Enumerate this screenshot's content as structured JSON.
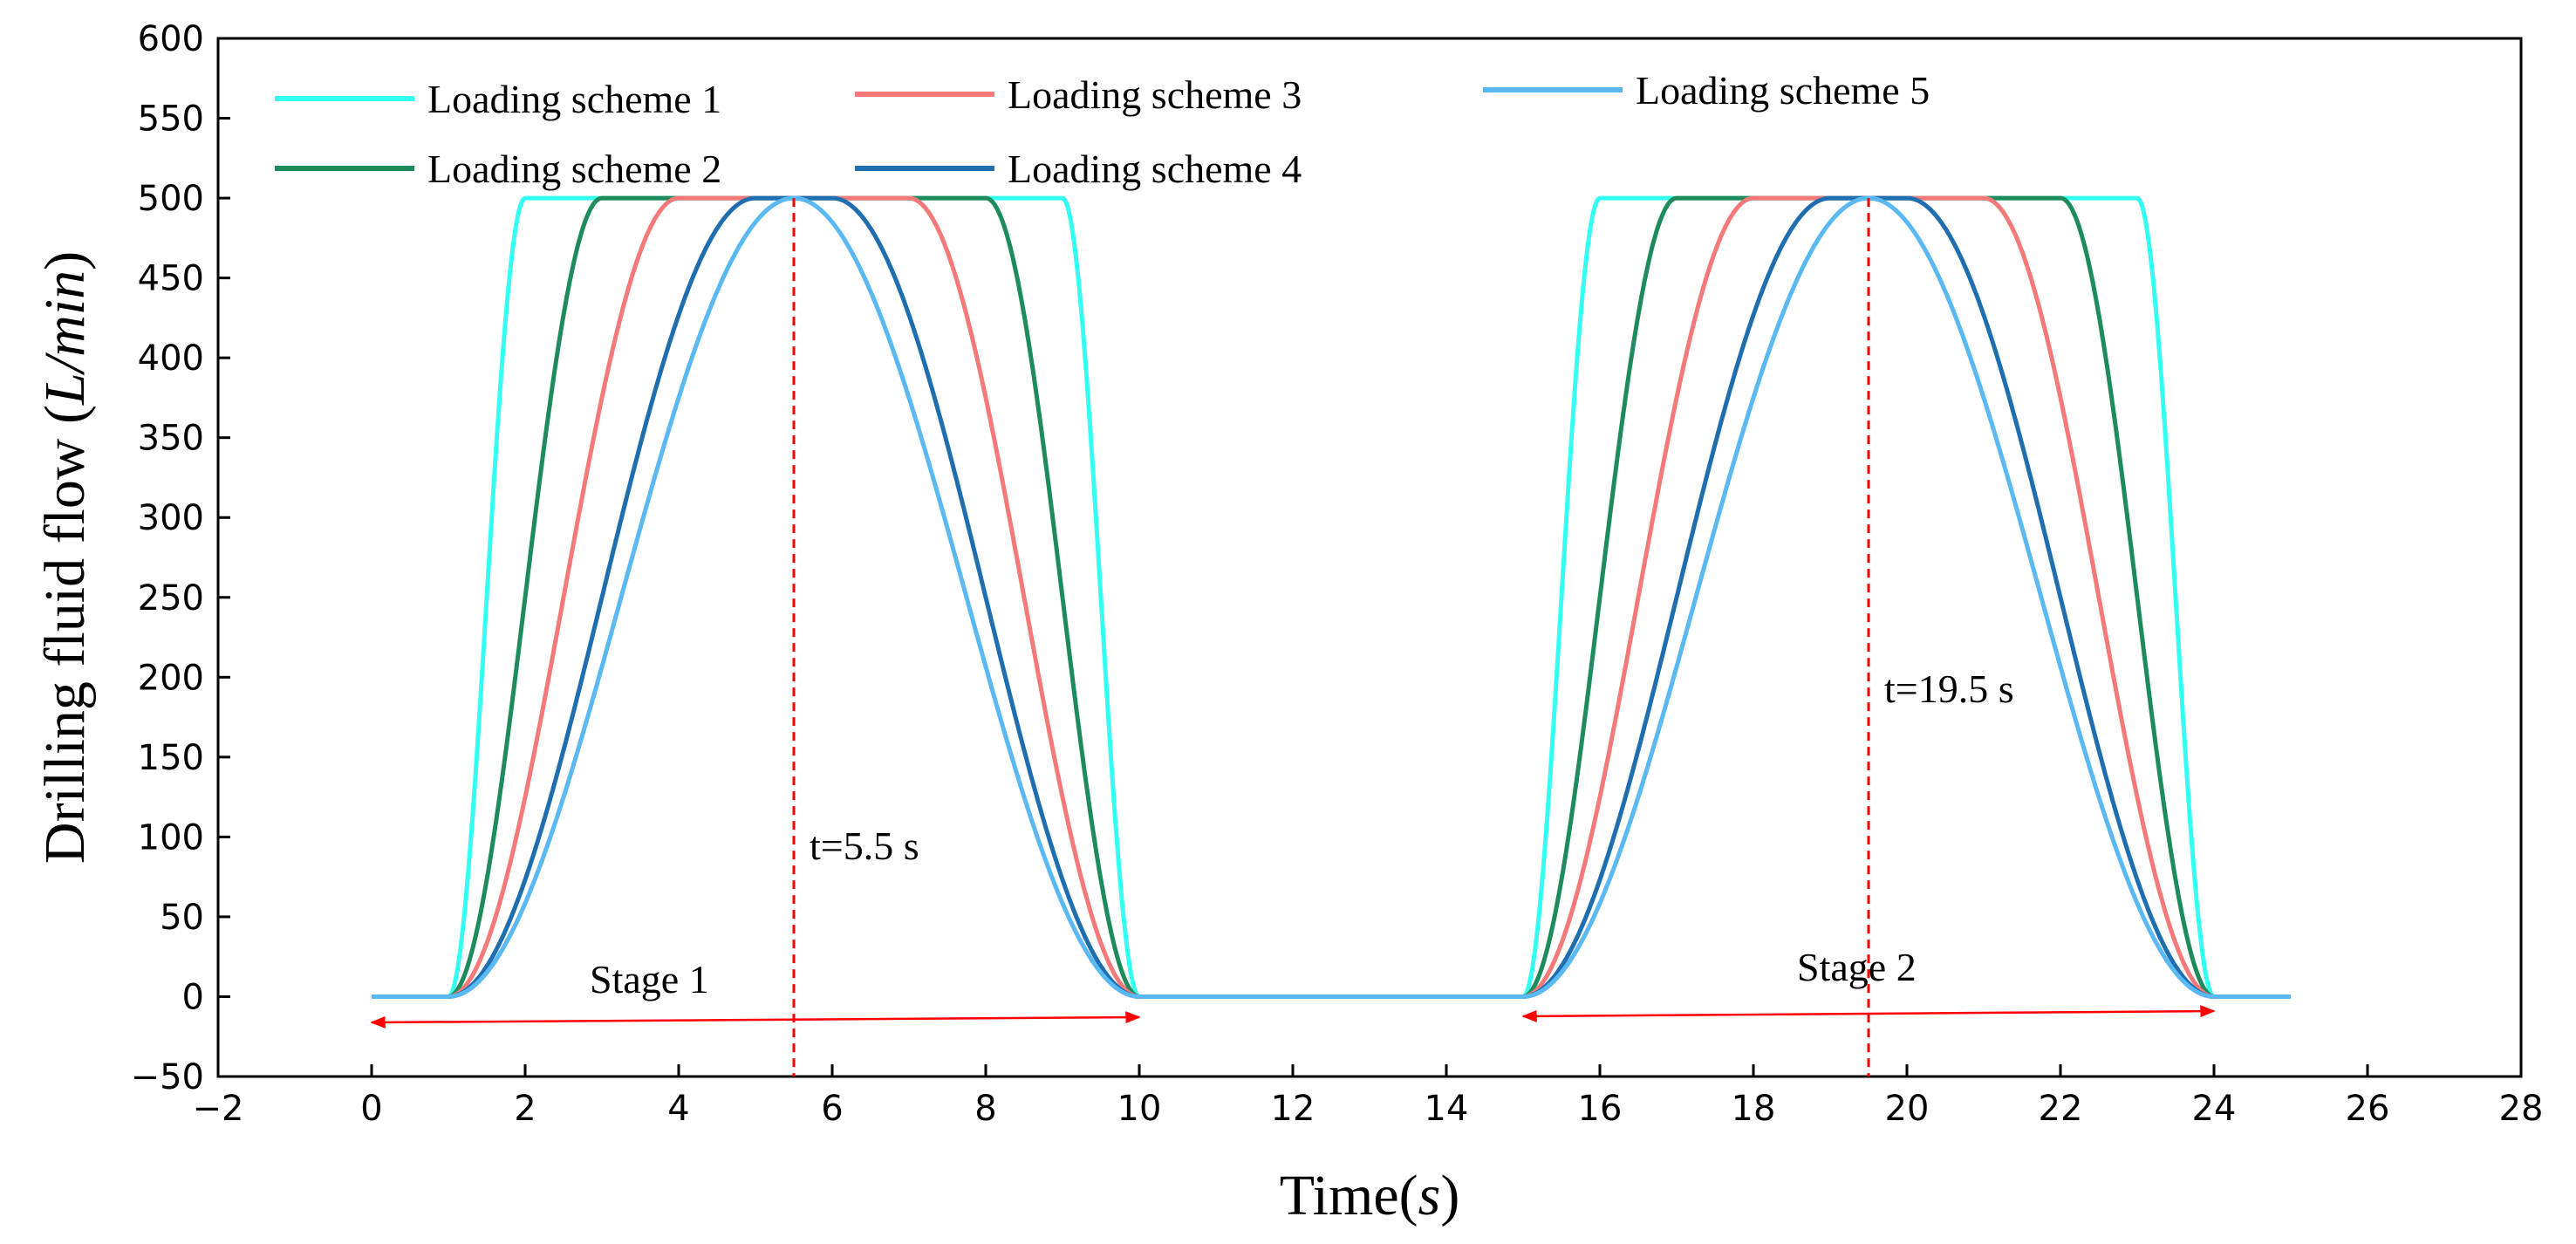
{
  "chart_data": {
    "type": "line",
    "title": "",
    "xlabel": "Time(s)",
    "xlabel_parts": [
      "Time(",
      "s",
      ")"
    ],
    "ylabel": "Drilling fluid flow (L/min)",
    "ylabel_parts": [
      "Drilling fluid flow (",
      "L/min",
      ")"
    ],
    "xlim": [
      -2,
      28
    ],
    "ylim": [
      -50,
      600
    ],
    "xticks": [
      -2,
      0,
      2,
      4,
      6,
      8,
      10,
      12,
      14,
      16,
      18,
      20,
      22,
      24,
      26,
      28
    ],
    "xtick_labels": [
      "−2",
      "0",
      "2",
      "4",
      "6",
      "8",
      "10",
      "12",
      "14",
      "16",
      "18",
      "20",
      "22",
      "24",
      "26",
      "28"
    ],
    "yticks": [
      -50,
      0,
      50,
      100,
      150,
      200,
      250,
      300,
      350,
      400,
      450,
      500,
      550,
      600
    ],
    "ytick_labels": [
      "−50",
      "0",
      "50",
      "100",
      "150",
      "200",
      "250",
      "300",
      "350",
      "400",
      "450",
      "500",
      "550",
      "600"
    ],
    "grid": false,
    "legend_position": "top-left",
    "series": [
      {
        "name": "Loading scheme 1",
        "color": "#33FFF2",
        "ramp": 1.0
      },
      {
        "name": "Loading scheme 2",
        "color": "#1E8B5C",
        "ramp": 2.0
      },
      {
        "name": "Loading scheme 3",
        "color": "#F47A7A",
        "ramp": 3.0
      },
      {
        "name": "Loading scheme 4",
        "color": "#1F6FB0",
        "ramp": 4.0
      },
      {
        "name": "Loading scheme 5",
        "color": "#5AB8F2",
        "ramp": 4.5
      }
    ],
    "stages": [
      {
        "name": "Stage 1",
        "start": 0,
        "end": 10,
        "rise_start": 1,
        "fall_end": 10,
        "peak_time": 5.5,
        "peak_label": "t=5.5 s"
      },
      {
        "name": "Stage 2",
        "start": 15,
        "end": 24,
        "rise_start": 15,
        "fall_end": 24,
        "peak_time": 19.5,
        "peak_label": "t=19.5 s"
      }
    ],
    "flat_end": 25,
    "peak_value": 500,
    "annotation_color": "#FF0000"
  }
}
